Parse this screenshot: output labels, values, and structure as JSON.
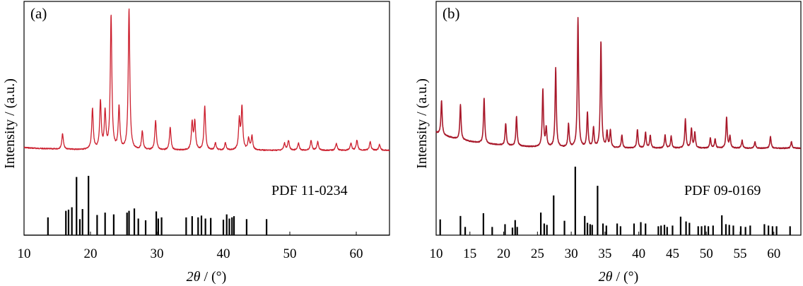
{
  "chart_data": [
    {
      "type": "line",
      "panel_label": "(a)",
      "xlabel_italic": "2θ",
      "xlabel_rest": " / (°)",
      "ylabel": "Intensity / (a.u.)",
      "xlim": [
        10,
        65
      ],
      "xticks": [
        10,
        20,
        30,
        40,
        50,
        60
      ],
      "reference_label": "PDF 11-0234",
      "colors": {
        "pattern": "#cc1f2e",
        "reference": "#000000"
      },
      "pattern_baseline": 0.02,
      "peaks": [
        {
          "x": 15.8,
          "y": 0.11
        },
        {
          "x": 20.3,
          "y": 0.29
        },
        {
          "x": 21.5,
          "y": 0.34
        },
        {
          "x": 22.2,
          "y": 0.26
        },
        {
          "x": 23.1,
          "y": 0.95
        },
        {
          "x": 24.3,
          "y": 0.3
        },
        {
          "x": 25.8,
          "y": 1.0
        },
        {
          "x": 27.8,
          "y": 0.13
        },
        {
          "x": 29.8,
          "y": 0.21
        },
        {
          "x": 32.0,
          "y": 0.16
        },
        {
          "x": 35.3,
          "y": 0.19
        },
        {
          "x": 35.7,
          "y": 0.2
        },
        {
          "x": 37.2,
          "y": 0.31
        },
        {
          "x": 38.8,
          "y": 0.05
        },
        {
          "x": 40.3,
          "y": 0.05
        },
        {
          "x": 42.4,
          "y": 0.21
        },
        {
          "x": 42.8,
          "y": 0.3
        },
        {
          "x": 43.8,
          "y": 0.08
        },
        {
          "x": 44.3,
          "y": 0.1
        },
        {
          "x": 49.2,
          "y": 0.05
        },
        {
          "x": 49.8,
          "y": 0.07
        },
        {
          "x": 51.3,
          "y": 0.05
        },
        {
          "x": 53.2,
          "y": 0.07
        },
        {
          "x": 54.2,
          "y": 0.06
        },
        {
          "x": 57.0,
          "y": 0.05
        },
        {
          "x": 59.2,
          "y": 0.05
        },
        {
          "x": 60.1,
          "y": 0.07
        },
        {
          "x": 62.1,
          "y": 0.06
        },
        {
          "x": 63.5,
          "y": 0.04
        }
      ],
      "reference_lines": [
        {
          "x": 13.6,
          "y": 0.3
        },
        {
          "x": 16.3,
          "y": 0.41
        },
        {
          "x": 16.7,
          "y": 0.43
        },
        {
          "x": 17.2,
          "y": 0.47
        },
        {
          "x": 17.9,
          "y": 0.98
        },
        {
          "x": 18.4,
          "y": 0.27
        },
        {
          "x": 18.8,
          "y": 0.44
        },
        {
          "x": 19.7,
          "y": 1.0
        },
        {
          "x": 21.0,
          "y": 0.34
        },
        {
          "x": 22.2,
          "y": 0.38
        },
        {
          "x": 23.5,
          "y": 0.35
        },
        {
          "x": 25.5,
          "y": 0.38
        },
        {
          "x": 25.8,
          "y": 0.41
        },
        {
          "x": 26.6,
          "y": 0.45
        },
        {
          "x": 27.2,
          "y": 0.28
        },
        {
          "x": 28.3,
          "y": 0.25
        },
        {
          "x": 29.9,
          "y": 0.4
        },
        {
          "x": 30.2,
          "y": 0.28
        },
        {
          "x": 30.7,
          "y": 0.3
        },
        {
          "x": 34.4,
          "y": 0.3
        },
        {
          "x": 35.3,
          "y": 0.32
        },
        {
          "x": 36.2,
          "y": 0.3
        },
        {
          "x": 36.7,
          "y": 0.33
        },
        {
          "x": 37.3,
          "y": 0.28
        },
        {
          "x": 38.1,
          "y": 0.29
        },
        {
          "x": 40.0,
          "y": 0.26
        },
        {
          "x": 40.5,
          "y": 0.35
        },
        {
          "x": 40.9,
          "y": 0.28
        },
        {
          "x": 41.3,
          "y": 0.3
        },
        {
          "x": 41.6,
          "y": 0.32
        },
        {
          "x": 43.5,
          "y": 0.27
        },
        {
          "x": 46.5,
          "y": 0.27
        }
      ]
    },
    {
      "type": "line",
      "panel_label": "(b)",
      "xlabel_italic": "2θ",
      "xlabel_rest": " / (°)",
      "ylabel": "Intensity / (a.u.)",
      "xlim": [
        10,
        64
      ],
      "xticks": [
        10,
        15,
        20,
        25,
        30,
        35,
        40,
        45,
        50,
        55,
        60
      ],
      "reference_label": "PDF 09-0169",
      "colors": {
        "pattern": "#a8182a",
        "reference": "#000000"
      },
      "pattern_baseline": 0.12,
      "peaks": [
        {
          "x": 10.8,
          "y": 0.26
        },
        {
          "x": 13.6,
          "y": 0.27
        },
        {
          "x": 17.1,
          "y": 0.35
        },
        {
          "x": 20.3,
          "y": 0.17
        },
        {
          "x": 21.9,
          "y": 0.23
        },
        {
          "x": 25.8,
          "y": 0.44
        },
        {
          "x": 26.3,
          "y": 0.14
        },
        {
          "x": 27.7,
          "y": 0.61
        },
        {
          "x": 29.6,
          "y": 0.18
        },
        {
          "x": 31.0,
          "y": 1.0
        },
        {
          "x": 32.4,
          "y": 0.27
        },
        {
          "x": 33.3,
          "y": 0.15
        },
        {
          "x": 34.4,
          "y": 0.82
        },
        {
          "x": 35.3,
          "y": 0.12
        },
        {
          "x": 35.8,
          "y": 0.13
        },
        {
          "x": 37.5,
          "y": 0.1
        },
        {
          "x": 39.8,
          "y": 0.14
        },
        {
          "x": 41.0,
          "y": 0.12
        },
        {
          "x": 41.7,
          "y": 0.1
        },
        {
          "x": 43.9,
          "y": 0.1
        },
        {
          "x": 44.8,
          "y": 0.09
        },
        {
          "x": 46.9,
          "y": 0.22
        },
        {
          "x": 47.8,
          "y": 0.15
        },
        {
          "x": 48.3,
          "y": 0.12
        },
        {
          "x": 50.6,
          "y": 0.08
        },
        {
          "x": 51.3,
          "y": 0.07
        },
        {
          "x": 53.0,
          "y": 0.24
        },
        {
          "x": 53.5,
          "y": 0.09
        },
        {
          "x": 55.3,
          "y": 0.06
        },
        {
          "x": 57.2,
          "y": 0.05
        },
        {
          "x": 59.5,
          "y": 0.09
        },
        {
          "x": 62.6,
          "y": 0.05
        }
      ],
      "reference_lines": [
        {
          "x": 10.6,
          "y": 0.23
        },
        {
          "x": 13.6,
          "y": 0.28
        },
        {
          "x": 14.3,
          "y": 0.12
        },
        {
          "x": 17.0,
          "y": 0.32
        },
        {
          "x": 18.3,
          "y": 0.12
        },
        {
          "x": 20.2,
          "y": 0.16
        },
        {
          "x": 21.3,
          "y": 0.11
        },
        {
          "x": 21.7,
          "y": 0.22
        },
        {
          "x": 22.0,
          "y": 0.12
        },
        {
          "x": 25.5,
          "y": 0.33
        },
        {
          "x": 26.0,
          "y": 0.17
        },
        {
          "x": 26.4,
          "y": 0.15
        },
        {
          "x": 27.4,
          "y": 0.58
        },
        {
          "x": 29.0,
          "y": 0.21
        },
        {
          "x": 30.6,
          "y": 1.0
        },
        {
          "x": 32.0,
          "y": 0.28
        },
        {
          "x": 32.4,
          "y": 0.18
        },
        {
          "x": 32.8,
          "y": 0.16
        },
        {
          "x": 33.1,
          "y": 0.15
        },
        {
          "x": 33.9,
          "y": 0.72
        },
        {
          "x": 34.7,
          "y": 0.17
        },
        {
          "x": 35.2,
          "y": 0.14
        },
        {
          "x": 36.8,
          "y": 0.17
        },
        {
          "x": 37.3,
          "y": 0.13
        },
        {
          "x": 39.3,
          "y": 0.17
        },
        {
          "x": 40.3,
          "y": 0.19
        },
        {
          "x": 41.0,
          "y": 0.17
        },
        {
          "x": 42.9,
          "y": 0.13
        },
        {
          "x": 43.3,
          "y": 0.14
        },
        {
          "x": 43.8,
          "y": 0.15
        },
        {
          "x": 44.2,
          "y": 0.12
        },
        {
          "x": 45.0,
          "y": 0.14
        },
        {
          "x": 46.2,
          "y": 0.27
        },
        {
          "x": 47.0,
          "y": 0.2
        },
        {
          "x": 47.5,
          "y": 0.18
        },
        {
          "x": 48.8,
          "y": 0.13
        },
        {
          "x": 49.3,
          "y": 0.13
        },
        {
          "x": 49.8,
          "y": 0.14
        },
        {
          "x": 50.3,
          "y": 0.13
        },
        {
          "x": 51.0,
          "y": 0.14
        },
        {
          "x": 52.3,
          "y": 0.29
        },
        {
          "x": 52.9,
          "y": 0.16
        },
        {
          "x": 53.4,
          "y": 0.15
        },
        {
          "x": 54.0,
          "y": 0.14
        },
        {
          "x": 55.1,
          "y": 0.13
        },
        {
          "x": 55.8,
          "y": 0.12
        },
        {
          "x": 56.5,
          "y": 0.14
        },
        {
          "x": 58.6,
          "y": 0.16
        },
        {
          "x": 59.2,
          "y": 0.14
        },
        {
          "x": 59.8,
          "y": 0.13
        },
        {
          "x": 60.4,
          "y": 0.13
        },
        {
          "x": 62.4,
          "y": 0.13
        }
      ]
    }
  ]
}
